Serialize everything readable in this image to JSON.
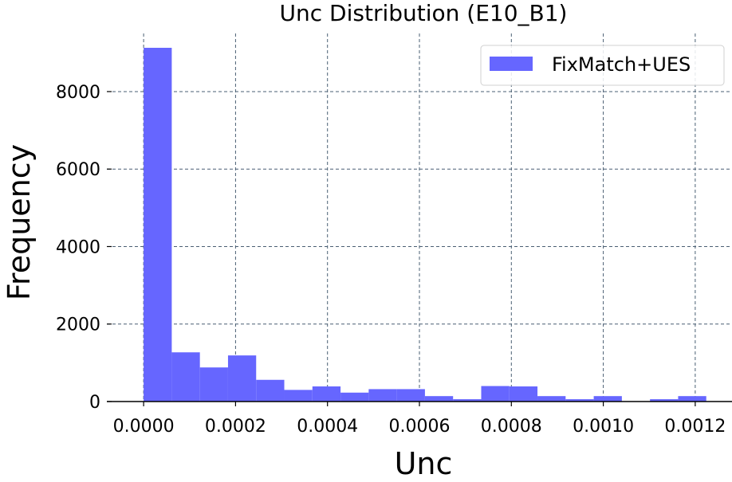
{
  "chart_data": {
    "type": "bar",
    "title": "Unc Distribution (E10_B1)",
    "xlabel": "Unc",
    "ylabel": "Frequency",
    "xlim": [
      -8e-05,
      0.00128
    ],
    "ylim": [
      0,
      9500
    ],
    "xticks": [
      0.0,
      0.0002,
      0.0004,
      0.0006,
      0.0008,
      0.001,
      0.0012
    ],
    "xtick_labels": [
      "0.0000",
      "0.0002",
      "0.0004",
      "0.0006",
      "0.0008",
      "0.0010",
      "0.0012"
    ],
    "yticks": [
      0,
      2000,
      4000,
      6000,
      8000
    ],
    "ytick_labels": [
      "0",
      "2000",
      "4000",
      "6000",
      "8000"
    ],
    "grid": true,
    "legend_position": "top-right",
    "color": "#6666ff",
    "series": [
      {
        "name": "FixMatch+UES",
        "bin_edges": [
          0.0,
          6.12e-05,
          0.0001224,
          0.0001836,
          0.0002448,
          0.000306,
          0.0003672,
          0.0004284,
          0.0004896,
          0.0005508,
          0.000612,
          0.0006732,
          0.0007344,
          0.0007956,
          0.0008568,
          0.000918,
          0.0009792,
          0.0010404,
          0.0011016,
          0.0011628,
          0.001224
        ],
        "values": [
          9130,
          1270,
          880,
          1190,
          560,
          300,
          390,
          230,
          320,
          320,
          140,
          60,
          400,
          390,
          140,
          60,
          140,
          10,
          60,
          140
        ]
      }
    ]
  }
}
